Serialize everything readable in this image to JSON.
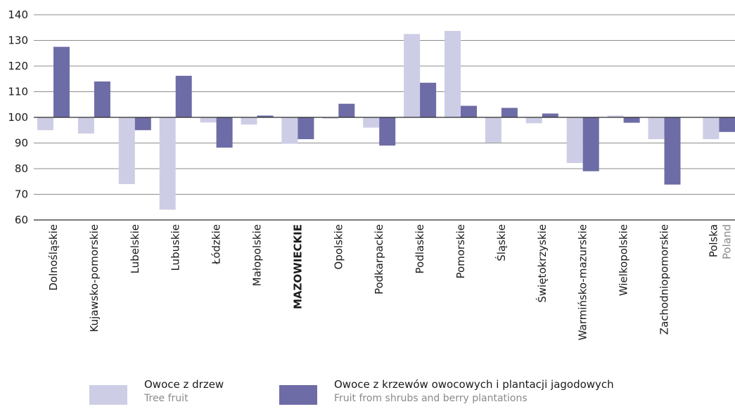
{
  "colors": {
    "tree": "#cdcde6",
    "shrub": "#6e6ca6",
    "grid": "#8c8c8c",
    "axis": "#2a2a2a"
  },
  "chart_data": {
    "type": "bar",
    "ylim": [
      60,
      140
    ],
    "y_ticks": [
      60,
      70,
      80,
      90,
      100,
      110,
      120,
      130,
      140
    ],
    "baseline": 100,
    "grid": true,
    "categories": [
      {
        "label": "Dolnośląskie"
      },
      {
        "label": "Kujawsko-pomorskie"
      },
      {
        "label": "Lubelskie"
      },
      {
        "label": "Lubuskie"
      },
      {
        "label": "Łódzkie"
      },
      {
        "label": "Małopolskie"
      },
      {
        "label": "MAZOWIECKIE",
        "bold": true
      },
      {
        "label": "Opolskie"
      },
      {
        "label": "Podkarpackie"
      },
      {
        "label": "Podlaskie"
      },
      {
        "label": "Pomorskie"
      },
      {
        "label": "Śląskie"
      },
      {
        "label": "Świętokrzyskie"
      },
      {
        "label": "Warmińsko-mazurskie"
      },
      {
        "label": "Wielkopolskie"
      },
      {
        "label": "Zachodniopomorskie"
      },
      {
        "label": "Polska",
        "sublabel": "Poland",
        "gap_before": true
      }
    ],
    "series": [
      {
        "name": "Owoce z drzew",
        "name_en": "Tree fruit",
        "color_key": "tree",
        "values": [
          95,
          93.7,
          74,
          64,
          98,
          97.2,
          89.7,
          99.5,
          96,
          132.5,
          133.7,
          90.2,
          97.7,
          82.2,
          100.7,
          91.5,
          91.5
        ]
      },
      {
        "name": "Owoce z krzewów owocowych i plantacji jagodowych",
        "name_en": "Fruit from shrubs and berry plantations",
        "color_key": "shrub",
        "values": [
          127.5,
          114,
          95,
          116.2,
          88.2,
          100.7,
          91.5,
          105.3,
          89,
          113.5,
          104.5,
          103.7,
          101.5,
          79,
          97.9,
          73.8,
          94.3
        ]
      }
    ]
  }
}
